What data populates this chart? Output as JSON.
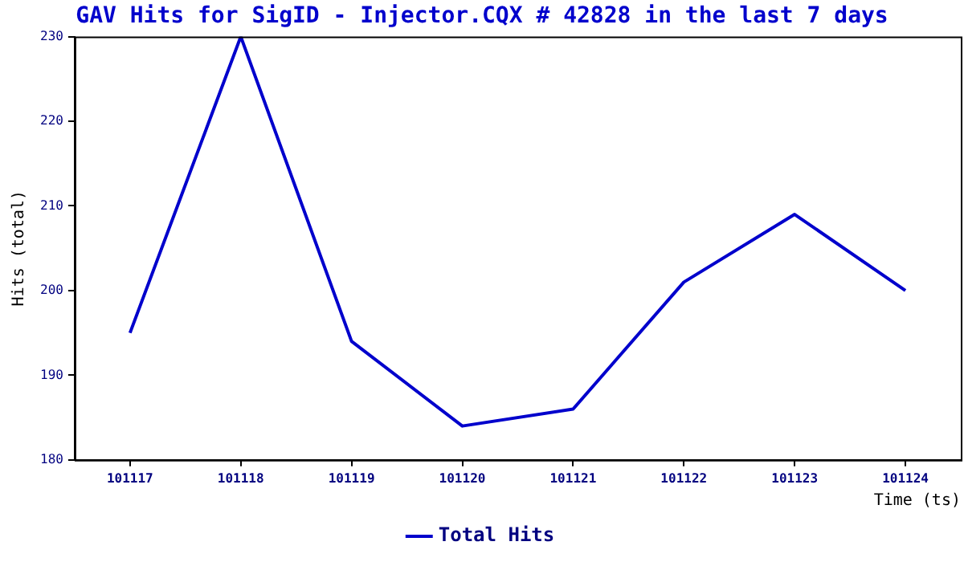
{
  "chart_data": {
    "type": "line",
    "title": "GAV Hits for SigID - Injector.CQX # 42828 in the last 7 days",
    "xlabel": "Time (ts)",
    "ylabel": "Hits (total)",
    "categories": [
      "101117",
      "101118",
      "101119",
      "101120",
      "101121",
      "101122",
      "101123",
      "101124"
    ],
    "series": [
      {
        "name": "Total Hits",
        "color": "#0000cc",
        "values": [
          195,
          230,
          194,
          184,
          186,
          201,
          209,
          200
        ]
      }
    ],
    "ylim": [
      180,
      230
    ],
    "yticks": [
      180,
      190,
      200,
      210,
      220,
      230
    ],
    "grid": false,
    "legend": "bottom",
    "marker": "none",
    "line_style": "solid"
  }
}
